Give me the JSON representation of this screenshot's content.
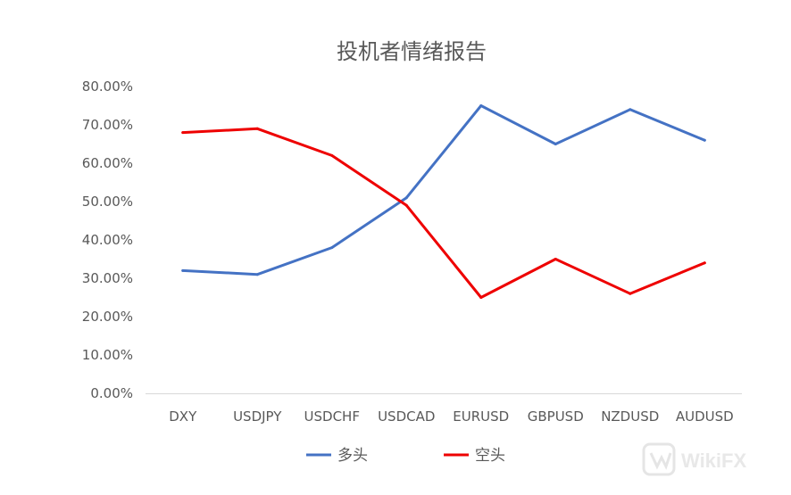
{
  "chart_data": {
    "type": "line",
    "title": "投机者情绪报告",
    "categories": [
      "DXY",
      "USDJPY",
      "USDCHF",
      "USDCAD",
      "EURUSD",
      "GBPUSD",
      "NZDUSD",
      "AUDUSD"
    ],
    "series": [
      {
        "name": "多头",
        "color": "#4472c4",
        "values": [
          0.32,
          0.31,
          0.38,
          0.51,
          0.75,
          0.65,
          0.74,
          0.66
        ]
      },
      {
        "name": "空头",
        "color": "#ee0000",
        "values": [
          0.68,
          0.69,
          0.62,
          0.49,
          0.25,
          0.35,
          0.26,
          0.34
        ]
      }
    ],
    "ylim": [
      0,
      0.8
    ],
    "yticks": [
      "0.00%",
      "10.00%",
      "20.00%",
      "30.00%",
      "40.00%",
      "50.00%",
      "60.00%",
      "70.00%",
      "80.00%"
    ],
    "grid": false,
    "legend_position": "bottom",
    "xlabel": "",
    "ylabel": ""
  },
  "watermark": {
    "text": "WikiFX",
    "icon": "wikifx-logo-icon"
  }
}
